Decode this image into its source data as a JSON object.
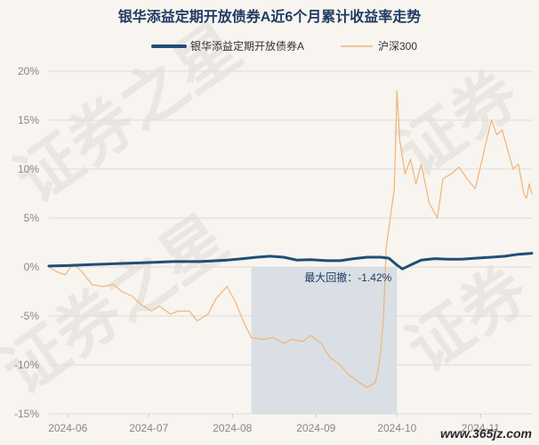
{
  "chart_data": {
    "type": "line",
    "title": "银华添益定期开放债券A近6个月累计收益率走势",
    "legend_position": "top-center",
    "grid": "horizontal",
    "xlabel": "",
    "ylabel": "",
    "ylim": [
      -15,
      20
    ],
    "yticks": [
      -15,
      -10,
      -5,
      0,
      5,
      10,
      15,
      20
    ],
    "ytick_labels": [
      "-15%",
      "-10%",
      "-5%",
      "0%",
      "5%",
      "10%",
      "15%",
      "20%"
    ],
    "xlim": [
      "2024-05-25",
      "2024-11-20"
    ],
    "xticks": [
      "2024-06-01",
      "2024-07-01",
      "2024-08-01",
      "2024-09-01",
      "2024-10-01",
      "2024-11-01"
    ],
    "xtick_labels": [
      "2024-06",
      "2024-07",
      "2024-08",
      "2024-09",
      "2024-10",
      "2024-11"
    ],
    "drawdown": {
      "label": "最大回撤：-1.42%",
      "start": "2024-08-08",
      "end": "2024-10-01"
    },
    "series": [
      {
        "name": "银华添益定期开放债券A",
        "color": "#1f4e79",
        "points": [
          [
            "2024-05-25",
            0.1
          ],
          [
            "2024-06-01",
            0.15
          ],
          [
            "2024-06-10",
            0.25
          ],
          [
            "2024-06-20",
            0.35
          ],
          [
            "2024-06-30",
            0.45
          ],
          [
            "2024-07-10",
            0.55
          ],
          [
            "2024-07-20",
            0.55
          ],
          [
            "2024-07-30",
            0.7
          ],
          [
            "2024-08-05",
            0.85
          ],
          [
            "2024-08-10",
            1.0
          ],
          [
            "2024-08-15",
            1.1
          ],
          [
            "2024-08-20",
            1.0
          ],
          [
            "2024-08-25",
            0.7
          ],
          [
            "2024-08-30",
            0.75
          ],
          [
            "2024-09-05",
            0.65
          ],
          [
            "2024-09-10",
            0.65
          ],
          [
            "2024-09-15",
            0.85
          ],
          [
            "2024-09-20",
            1.0
          ],
          [
            "2024-09-25",
            1.0
          ],
          [
            "2024-09-28",
            0.9
          ],
          [
            "2024-10-01",
            0.2
          ],
          [
            "2024-10-03",
            -0.2
          ],
          [
            "2024-10-06",
            0.2
          ],
          [
            "2024-10-10",
            0.7
          ],
          [
            "2024-10-15",
            0.85
          ],
          [
            "2024-10-20",
            0.8
          ],
          [
            "2024-10-25",
            0.8
          ],
          [
            "2024-10-30",
            0.9
          ],
          [
            "2024-11-05",
            1.0
          ],
          [
            "2024-11-10",
            1.1
          ],
          [
            "2024-11-15",
            1.3
          ],
          [
            "2024-11-20",
            1.4
          ]
        ]
      },
      {
        "name": "沪深300",
        "color": "#f0b47a",
        "points": [
          [
            "2024-05-25",
            0.0
          ],
          [
            "2024-05-28",
            -0.5
          ],
          [
            "2024-05-31",
            -0.8
          ],
          [
            "2024-06-03",
            0.3
          ],
          [
            "2024-06-06",
            -0.4
          ],
          [
            "2024-06-10",
            -1.8
          ],
          [
            "2024-06-14",
            -2.0
          ],
          [
            "2024-06-18",
            -1.8
          ],
          [
            "2024-06-21",
            -2.5
          ],
          [
            "2024-06-25",
            -3.0
          ],
          [
            "2024-06-28",
            -3.8
          ],
          [
            "2024-07-02",
            -4.5
          ],
          [
            "2024-07-05",
            -4.0
          ],
          [
            "2024-07-09",
            -4.8
          ],
          [
            "2024-07-12",
            -4.5
          ],
          [
            "2024-07-16",
            -4.5
          ],
          [
            "2024-07-19",
            -5.5
          ],
          [
            "2024-07-23",
            -4.8
          ],
          [
            "2024-07-26",
            -3.2
          ],
          [
            "2024-07-30",
            -2.0
          ],
          [
            "2024-08-02",
            -3.5
          ],
          [
            "2024-08-05",
            -5.5
          ],
          [
            "2024-08-08",
            -7.2
          ],
          [
            "2024-08-12",
            -7.4
          ],
          [
            "2024-08-16",
            -7.2
          ],
          [
            "2024-08-20",
            -7.8
          ],
          [
            "2024-08-23",
            -7.4
          ],
          [
            "2024-08-27",
            -7.6
          ],
          [
            "2024-08-30",
            -7.0
          ],
          [
            "2024-09-03",
            -7.8
          ],
          [
            "2024-09-06",
            -9.2
          ],
          [
            "2024-09-10",
            -10.0
          ],
          [
            "2024-09-13",
            -11.0
          ],
          [
            "2024-09-17",
            -11.8
          ],
          [
            "2024-09-20",
            -12.3
          ],
          [
            "2024-09-23",
            -11.8
          ],
          [
            "2024-09-24",
            -10.5
          ],
          [
            "2024-09-25",
            -8.5
          ],
          [
            "2024-09-26",
            -5.0
          ],
          [
            "2024-09-27",
            2.0
          ],
          [
            "2024-09-30",
            8.0
          ],
          [
            "2024-10-01",
            18.0
          ],
          [
            "2024-10-02",
            13.0
          ],
          [
            "2024-10-04",
            9.5
          ],
          [
            "2024-10-06",
            11.0
          ],
          [
            "2024-10-08",
            8.5
          ],
          [
            "2024-10-10",
            10.5
          ],
          [
            "2024-10-13",
            6.5
          ],
          [
            "2024-10-16",
            5.0
          ],
          [
            "2024-10-18",
            9.0
          ],
          [
            "2024-10-21",
            9.5
          ],
          [
            "2024-10-24",
            10.2
          ],
          [
            "2024-10-27",
            9.0
          ],
          [
            "2024-10-30",
            8.0
          ],
          [
            "2024-11-02",
            11.5
          ],
          [
            "2024-11-05",
            15.0
          ],
          [
            "2024-11-07",
            13.5
          ],
          [
            "2024-11-09",
            14.0
          ],
          [
            "2024-11-11",
            12.0
          ],
          [
            "2024-11-13",
            10.0
          ],
          [
            "2024-11-15",
            10.5
          ],
          [
            "2024-11-17",
            7.5
          ],
          [
            "2024-11-18",
            7.0
          ],
          [
            "2024-11-19",
            8.5
          ],
          [
            "2024-11-20",
            7.5
          ]
        ]
      }
    ]
  },
  "watermark": {
    "left": "证券之星",
    "right": "证券"
  },
  "site": {
    "label": "www.365jz.com"
  },
  "colors": {
    "background": "#f8f4ef",
    "title": "#1f3b63",
    "drawdown_fill": "#cfd8e0",
    "grid": "#dddddd"
  }
}
